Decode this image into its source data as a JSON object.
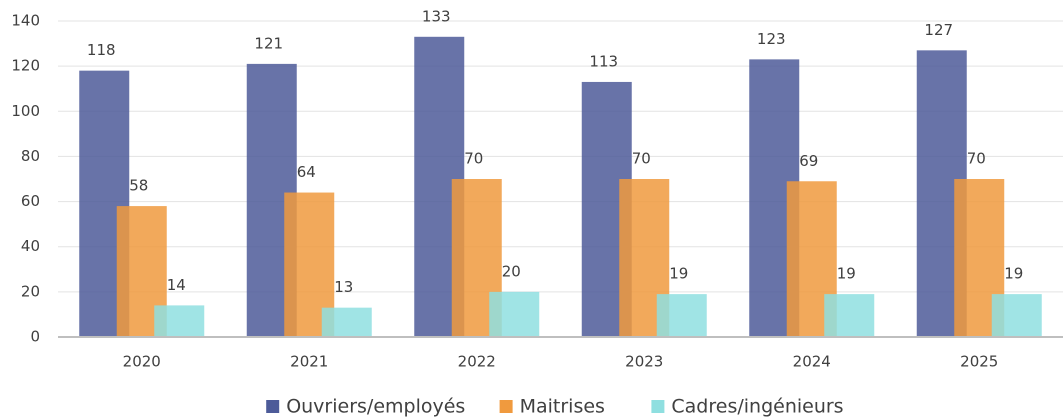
{
  "chart_data": {
    "type": "bar",
    "categories": [
      "2020",
      "2021",
      "2022",
      "2023",
      "2024",
      "2025"
    ],
    "series": [
      {
        "name": "Ouvriers/employés",
        "color": "#4d5b99",
        "values": [
          118,
          121,
          133,
          113,
          123,
          127
        ]
      },
      {
        "name": "Maitrises",
        "color": "#f09a3e",
        "values": [
          58,
          64,
          70,
          70,
          69,
          70
        ]
      },
      {
        "name": "Cadres/ingénieurs",
        "color": "#8fdfe0",
        "values": [
          14,
          13,
          20,
          19,
          19,
          19
        ]
      }
    ],
    "ylim": [
      0,
      140
    ],
    "yticks": [
      0,
      20,
      40,
      60,
      80,
      100,
      120,
      140
    ],
    "grid": true,
    "legend": "bottom"
  }
}
